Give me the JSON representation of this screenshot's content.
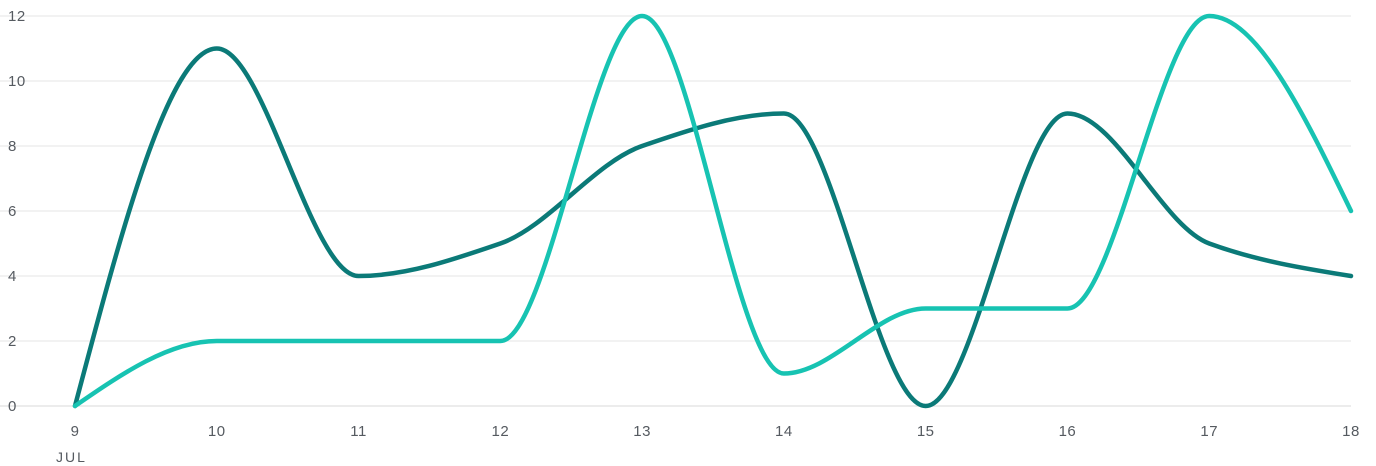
{
  "chart_data": {
    "type": "line",
    "title": "",
    "xlabel": "",
    "ylabel": "",
    "x": [
      9,
      10,
      11,
      12,
      13,
      14,
      15,
      16,
      17,
      18
    ],
    "x_tick_labels": [
      "9",
      "10",
      "11",
      "12",
      "13",
      "14",
      "15",
      "16",
      "17",
      "18"
    ],
    "month_label": "JUL",
    "ylim": [
      0,
      12
    ],
    "y_ticks": [
      0,
      2,
      4,
      6,
      8,
      10,
      12
    ],
    "grid": true,
    "interpolation": "smooth",
    "series": [
      {
        "color": "#0b7a78",
        "values": [
          0,
          11,
          4,
          5,
          8,
          9,
          0,
          9,
          5,
          4
        ]
      },
      {
        "color": "#17c3b2",
        "values": [
          0,
          2,
          2,
          2,
          12,
          1,
          3,
          3,
          12,
          6
        ]
      }
    ]
  }
}
